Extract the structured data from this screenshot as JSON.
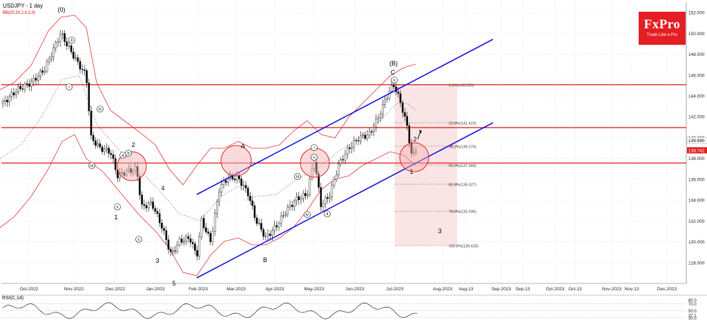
{
  "header": {
    "symbol": "USDJPY - 1 day",
    "indicator": "BB(20,20.2,0,2,0)"
  },
  "logo": {
    "brand": "FxPro",
    "tagline": "Trade Like a Pro"
  },
  "rsi": {
    "label": "RSI(C,14)",
    "ticks": [
      "80.0",
      "70.0",
      "50.0",
      "37.1",
      "30.0"
    ]
  },
  "chart_data": {
    "type": "candlestick",
    "symbol": "USDJPY",
    "timeframe": "1 day",
    "ylim": [
      126.0,
      153.0
    ],
    "y_ticks": [
      128,
      130,
      132,
      134,
      136,
      138,
      140,
      142,
      144,
      146,
      148,
      150,
      152
    ],
    "y_tick_labels": [
      "128.000",
      "130.000",
      "132.000",
      "134.000",
      "136.000",
      "138.000",
      "140.000",
      "142.000",
      "144.000",
      "146.000",
      "148.000",
      "150.000",
      "152.000"
    ],
    "x_tick_labels": [
      "Oct-2022",
      "Nov-2022",
      "Dec-2022",
      "Jan-2023",
      "Feb-2023",
      "Mar-2023",
      "Apr-2023",
      "May-2023",
      "Jun-2023",
      "Jul-2023",
      "Aug-2023",
      "Aug-13",
      "Sep-2023",
      "Sep-13",
      "Oct-2023",
      "Oct-13",
      "Nov-2023",
      "Nov-13",
      "Dec-2023"
    ],
    "price_labels": {
      "current_1": "139.690",
      "current_2": "138.742"
    },
    "horizontal_levels": [
      145.07,
      140.95,
      137.55
    ],
    "fibonacci": [
      {
        "label": "0.0%(145.065)",
        "value": 145.065
      },
      {
        "label": "23.6%(141.423)",
        "value": 141.423
      },
      {
        "label": "38.2%(139.170)",
        "value": 139.17
      },
      {
        "label": "50.0%(137.349)",
        "value": 137.349
      },
      {
        "label": "61.8%(135.527)",
        "value": 135.527
      },
      {
        "label": "78.6%(132.935)",
        "value": 132.935
      },
      {
        "label": "100.0%(129.632)",
        "value": 129.632
      }
    ],
    "wave_labels": [
      "(0)",
      "ii",
      "i",
      "iii",
      "iv",
      "v",
      "1",
      "2",
      "a",
      "b",
      "c",
      "3",
      "4",
      "5",
      "A",
      "B",
      "C",
      "(B)",
      "x",
      "i",
      "iii",
      "iv",
      "v",
      "ii",
      "2",
      "1",
      "3"
    ]
  }
}
